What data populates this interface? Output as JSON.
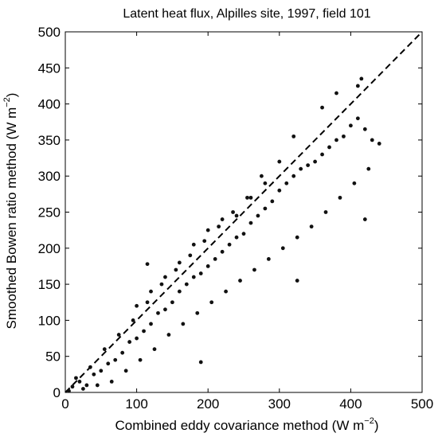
{
  "chart_data": {
    "type": "scatter",
    "title": "Latent heat flux, Alpilles site, 1997, field 101",
    "xlabel": "Combined eddy covariance method (W m",
    "xlabel_sup": "−2",
    "xlabel_end": ")",
    "ylabel": "Smoothed Bowen ratio method (W m",
    "ylabel_sup": "−2",
    "ylabel_end": ")",
    "xlim": [
      0,
      500
    ],
    "ylim": [
      0,
      500
    ],
    "x_ticks": [
      "0",
      "100",
      "200",
      "300",
      "400",
      "500"
    ],
    "y_ticks": [
      "0",
      "50",
      "100",
      "150",
      "200",
      "250",
      "300",
      "350",
      "400",
      "450",
      "500"
    ],
    "reference_line": "1:1 dashed",
    "grid": false,
    "marker_color": "#111111",
    "points": [
      [
        10,
        8
      ],
      [
        20,
        15
      ],
      [
        30,
        10
      ],
      [
        40,
        25
      ],
      [
        50,
        30
      ],
      [
        60,
        40
      ],
      [
        70,
        45
      ],
      [
        80,
        55
      ],
      [
        90,
        70
      ],
      [
        100,
        75
      ],
      [
        110,
        85
      ],
      [
        120,
        95
      ],
      [
        130,
        110
      ],
      [
        140,
        115
      ],
      [
        150,
        125
      ],
      [
        160,
        140
      ],
      [
        170,
        150
      ],
      [
        180,
        160
      ],
      [
        190,
        165
      ],
      [
        200,
        175
      ],
      [
        210,
        185
      ],
      [
        220,
        195
      ],
      [
        230,
        205
      ],
      [
        240,
        215
      ],
      [
        250,
        220
      ],
      [
        260,
        235
      ],
      [
        270,
        245
      ],
      [
        280,
        255
      ],
      [
        290,
        265
      ],
      [
        300,
        280
      ],
      [
        310,
        290
      ],
      [
        320,
        300
      ],
      [
        330,
        310
      ],
      [
        340,
        315
      ],
      [
        350,
        320
      ],
      [
        360,
        330
      ],
      [
        370,
        340
      ],
      [
        380,
        350
      ],
      [
        390,
        355
      ],
      [
        400,
        370
      ],
      [
        410,
        380
      ],
      [
        420,
        365
      ],
      [
        430,
        350
      ],
      [
        420,
        240
      ],
      [
        325,
        155
      ],
      [
        190,
        42
      ],
      [
        115,
        178
      ],
      [
        380,
        415
      ],
      [
        410,
        425
      ],
      [
        415,
        435
      ],
      [
        360,
        395
      ],
      [
        320,
        355
      ],
      [
        300,
        320
      ],
      [
        275,
        300
      ],
      [
        255,
        270
      ],
      [
        235,
        250
      ],
      [
        215,
        230
      ],
      [
        195,
        210
      ],
      [
        175,
        190
      ],
      [
        155,
        170
      ],
      [
        135,
        150
      ],
      [
        115,
        125
      ],
      [
        95,
        100
      ],
      [
        75,
        80
      ],
      [
        55,
        60
      ],
      [
        35,
        35
      ],
      [
        15,
        20
      ],
      [
        5,
        2
      ],
      [
        25,
        5
      ],
      [
        45,
        10
      ],
      [
        65,
        15
      ],
      [
        85,
        30
      ],
      [
        105,
        45
      ],
      [
        125,
        60
      ],
      [
        145,
        80
      ],
      [
        165,
        95
      ],
      [
        185,
        110
      ],
      [
        205,
        125
      ],
      [
        225,
        140
      ],
      [
        245,
        155
      ],
      [
        265,
        170
      ],
      [
        285,
        185
      ],
      [
        305,
        200
      ],
      [
        325,
        215
      ],
      [
        345,
        230
      ],
      [
        365,
        250
      ],
      [
        385,
        270
      ],
      [
        405,
        290
      ],
      [
        425,
        310
      ],
      [
        440,
        345
      ],
      [
        240,
        245
      ],
      [
        260,
        270
      ],
      [
        280,
        290
      ],
      [
        220,
        240
      ],
      [
        200,
        225
      ],
      [
        180,
        205
      ],
      [
        160,
        180
      ],
      [
        140,
        160
      ],
      [
        120,
        140
      ],
      [
        100,
        120
      ]
    ]
  }
}
